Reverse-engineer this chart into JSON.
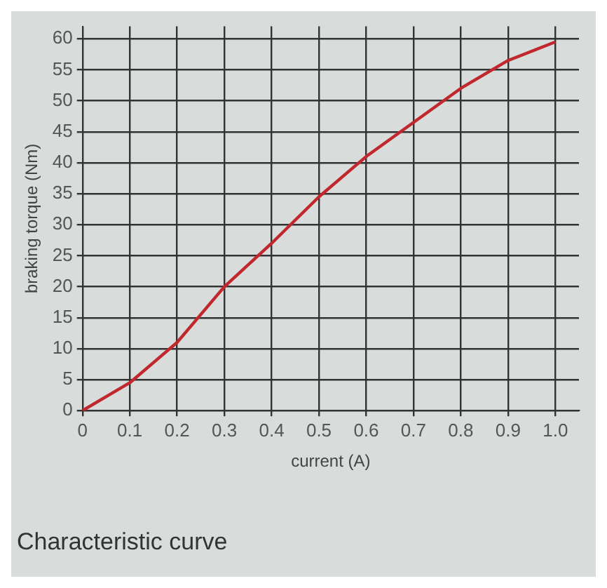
{
  "chart_data": {
    "type": "line",
    "title": "Characteristic curve",
    "xlabel": "current (A)",
    "ylabel": "braking torque (Nm)",
    "x": [
      0,
      0.1,
      0.2,
      0.3,
      0.4,
      0.5,
      0.6,
      0.7,
      0.8,
      0.9,
      1.0
    ],
    "series": [
      {
        "color": "#c0282e",
        "values": [
          0,
          4.5,
          11,
          20,
          27,
          34.5,
          41,
          46.5,
          52,
          56.5,
          59.5
        ]
      }
    ],
    "xlim": [
      0,
      1.05
    ],
    "ylim": [
      0,
      62
    ],
    "xticks": [
      0,
      0.1,
      0.2,
      0.3,
      0.4,
      0.5,
      0.6,
      0.7,
      0.8,
      0.9,
      {
        "value": 1,
        "label": "1.0"
      }
    ],
    "yticks": [
      0,
      5,
      10,
      15,
      20,
      25,
      30,
      35,
      40,
      45,
      50,
      55,
      60
    ],
    "grid": true,
    "legend": false,
    "marker": "none",
    "line_style": "solid"
  }
}
